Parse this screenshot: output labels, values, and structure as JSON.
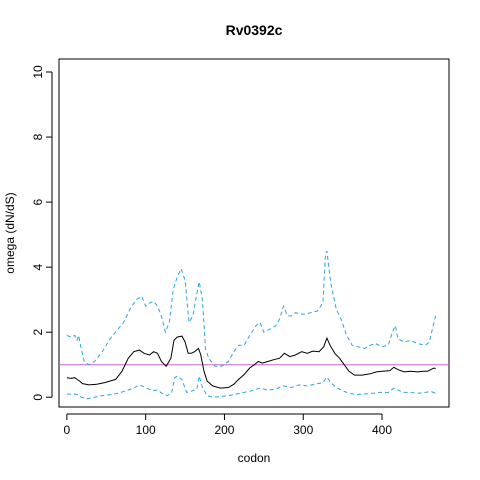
{
  "chart_data": {
    "type": "line",
    "title": "Rv0392c",
    "xlabel": "codon",
    "ylabel": "omega (dN/dS)",
    "xlim": [
      -10,
      485
    ],
    "ylim": [
      -0.3,
      10.4
    ],
    "x_ticks": [
      0,
      100,
      200,
      300,
      400
    ],
    "y_ticks": [
      0,
      2,
      4,
      6,
      8,
      10
    ],
    "grid": false,
    "legend": "none",
    "reference_line": {
      "y": 1.0,
      "color": "#cc66cc"
    },
    "series": [
      {
        "role": "upper",
        "color": "#29a3e0",
        "style": "dashed",
        "points": [
          [
            0,
            1.9
          ],
          [
            5,
            1.85
          ],
          [
            10,
            1.9
          ],
          [
            13,
            1.75
          ],
          [
            15,
            1.9
          ],
          [
            18,
            1.5
          ],
          [
            22,
            1.1
          ],
          [
            28,
            1.0
          ],
          [
            35,
            1.1
          ],
          [
            45,
            1.4
          ],
          [
            55,
            1.8
          ],
          [
            65,
            2.1
          ],
          [
            72,
            2.3
          ],
          [
            80,
            2.7
          ],
          [
            88,
            3.0
          ],
          [
            95,
            3.1
          ],
          [
            100,
            2.8
          ],
          [
            105,
            2.9
          ],
          [
            110,
            2.95
          ],
          [
            115,
            2.8
          ],
          [
            120,
            2.5
          ],
          [
            125,
            2.0
          ],
          [
            130,
            2.3
          ],
          [
            135,
            3.3
          ],
          [
            140,
            3.7
          ],
          [
            145,
            3.95
          ],
          [
            150,
            3.6
          ],
          [
            155,
            2.3
          ],
          [
            160,
            2.5
          ],
          [
            165,
            3.2
          ],
          [
            168,
            3.55
          ],
          [
            172,
            3.0
          ],
          [
            176,
            1.5
          ],
          [
            180,
            1.2
          ],
          [
            188,
            0.95
          ],
          [
            196,
            0.95
          ],
          [
            205,
            1.1
          ],
          [
            212,
            1.4
          ],
          [
            218,
            1.6
          ],
          [
            225,
            1.6
          ],
          [
            232,
            1.9
          ],
          [
            240,
            2.2
          ],
          [
            245,
            2.3
          ],
          [
            250,
            2.0
          ],
          [
            258,
            2.1
          ],
          [
            265,
            2.2
          ],
          [
            270,
            2.4
          ],
          [
            275,
            2.8
          ],
          [
            280,
            2.5
          ],
          [
            285,
            2.5
          ],
          [
            290,
            2.6
          ],
          [
            300,
            2.55
          ],
          [
            310,
            2.6
          ],
          [
            318,
            2.65
          ],
          [
            325,
            2.9
          ],
          [
            328,
            4.3
          ],
          [
            330,
            4.5
          ],
          [
            335,
            3.5
          ],
          [
            342,
            2.7
          ],
          [
            348,
            2.4
          ],
          [
            355,
            1.9
          ],
          [
            362,
            1.6
          ],
          [
            370,
            1.55
          ],
          [
            378,
            1.5
          ],
          [
            385,
            1.6
          ],
          [
            392,
            1.65
          ],
          [
            400,
            1.55
          ],
          [
            408,
            1.6
          ],
          [
            413,
            2.0
          ],
          [
            417,
            2.2
          ],
          [
            420,
            1.8
          ],
          [
            428,
            1.7
          ],
          [
            436,
            1.75
          ],
          [
            445,
            1.65
          ],
          [
            455,
            1.6
          ],
          [
            460,
            1.7
          ],
          [
            465,
            2.2
          ],
          [
            468,
            2.5
          ]
        ]
      },
      {
        "role": "estimate",
        "color": "#000000",
        "style": "solid",
        "points": [
          [
            0,
            0.6
          ],
          [
            5,
            0.58
          ],
          [
            10,
            0.6
          ],
          [
            13,
            0.55
          ],
          [
            16,
            0.5
          ],
          [
            20,
            0.42
          ],
          [
            28,
            0.38
          ],
          [
            38,
            0.4
          ],
          [
            48,
            0.45
          ],
          [
            55,
            0.5
          ],
          [
            62,
            0.55
          ],
          [
            70,
            0.8
          ],
          [
            78,
            1.2
          ],
          [
            85,
            1.4
          ],
          [
            92,
            1.45
          ],
          [
            98,
            1.35
          ],
          [
            105,
            1.3
          ],
          [
            110,
            1.4
          ],
          [
            115,
            1.35
          ],
          [
            120,
            1.1
          ],
          [
            126,
            0.95
          ],
          [
            132,
            1.2
          ],
          [
            136,
            1.75
          ],
          [
            140,
            1.85
          ],
          [
            146,
            1.88
          ],
          [
            150,
            1.7
          ],
          [
            154,
            1.35
          ],
          [
            158,
            1.35
          ],
          [
            162,
            1.4
          ],
          [
            167,
            1.5
          ],
          [
            170,
            1.3
          ],
          [
            174,
            0.8
          ],
          [
            178,
            0.5
          ],
          [
            185,
            0.35
          ],
          [
            195,
            0.28
          ],
          [
            205,
            0.3
          ],
          [
            212,
            0.4
          ],
          [
            218,
            0.55
          ],
          [
            225,
            0.7
          ],
          [
            232,
            0.9
          ],
          [
            238,
            1.0
          ],
          [
            243,
            1.1
          ],
          [
            248,
            1.05
          ],
          [
            255,
            1.1
          ],
          [
            262,
            1.15
          ],
          [
            270,
            1.2
          ],
          [
            276,
            1.35
          ],
          [
            283,
            1.25
          ],
          [
            290,
            1.3
          ],
          [
            298,
            1.4
          ],
          [
            305,
            1.35
          ],
          [
            312,
            1.42
          ],
          [
            320,
            1.4
          ],
          [
            326,
            1.55
          ],
          [
            330,
            1.82
          ],
          [
            334,
            1.6
          ],
          [
            340,
            1.35
          ],
          [
            346,
            1.2
          ],
          [
            352,
            1.0
          ],
          [
            358,
            0.8
          ],
          [
            365,
            0.68
          ],
          [
            375,
            0.68
          ],
          [
            385,
            0.72
          ],
          [
            393,
            0.78
          ],
          [
            400,
            0.8
          ],
          [
            410,
            0.82
          ],
          [
            415,
            0.92
          ],
          [
            420,
            0.85
          ],
          [
            428,
            0.78
          ],
          [
            436,
            0.8
          ],
          [
            445,
            0.78
          ],
          [
            452,
            0.8
          ],
          [
            458,
            0.8
          ],
          [
            462,
            0.85
          ],
          [
            466,
            0.9
          ],
          [
            468,
            0.88
          ]
        ]
      },
      {
        "role": "lower",
        "color": "#29a3e0",
        "style": "dashed",
        "points": [
          [
            0,
            0.1
          ],
          [
            5,
            0.09
          ],
          [
            10,
            0.1
          ],
          [
            14,
            0.08
          ],
          [
            18,
            0.0
          ],
          [
            25,
            -0.05
          ],
          [
            35,
            0.0
          ],
          [
            45,
            0.05
          ],
          [
            55,
            0.08
          ],
          [
            65,
            0.12
          ],
          [
            75,
            0.2
          ],
          [
            85,
            0.28
          ],
          [
            92,
            0.38
          ],
          [
            100,
            0.3
          ],
          [
            108,
            0.2
          ],
          [
            115,
            0.22
          ],
          [
            122,
            0.1
          ],
          [
            128,
            0.05
          ],
          [
            133,
            0.15
          ],
          [
            137,
            0.6
          ],
          [
            140,
            0.65
          ],
          [
            146,
            0.55
          ],
          [
            152,
            0.15
          ],
          [
            160,
            0.2
          ],
          [
            165,
            0.25
          ],
          [
            168,
            0.65
          ],
          [
            172,
            0.3
          ],
          [
            178,
            0.05
          ],
          [
            185,
            0.0
          ],
          [
            195,
            0.02
          ],
          [
            205,
            0.05
          ],
          [
            215,
            0.1
          ],
          [
            225,
            0.15
          ],
          [
            235,
            0.2
          ],
          [
            245,
            0.28
          ],
          [
            255,
            0.22
          ],
          [
            265,
            0.25
          ],
          [
            275,
            0.35
          ],
          [
            285,
            0.3
          ],
          [
            295,
            0.38
          ],
          [
            305,
            0.35
          ],
          [
            315,
            0.4
          ],
          [
            325,
            0.45
          ],
          [
            330,
            0.62
          ],
          [
            335,
            0.45
          ],
          [
            342,
            0.3
          ],
          [
            350,
            0.2
          ],
          [
            358,
            0.12
          ],
          [
            368,
            0.08
          ],
          [
            378,
            0.1
          ],
          [
            388,
            0.12
          ],
          [
            398,
            0.15
          ],
          [
            408,
            0.15
          ],
          [
            415,
            0.28
          ],
          [
            420,
            0.22
          ],
          [
            428,
            0.15
          ],
          [
            436,
            0.15
          ],
          [
            445,
            0.12
          ],
          [
            455,
            0.15
          ],
          [
            462,
            0.18
          ],
          [
            468,
            0.12
          ]
        ]
      }
    ]
  }
}
